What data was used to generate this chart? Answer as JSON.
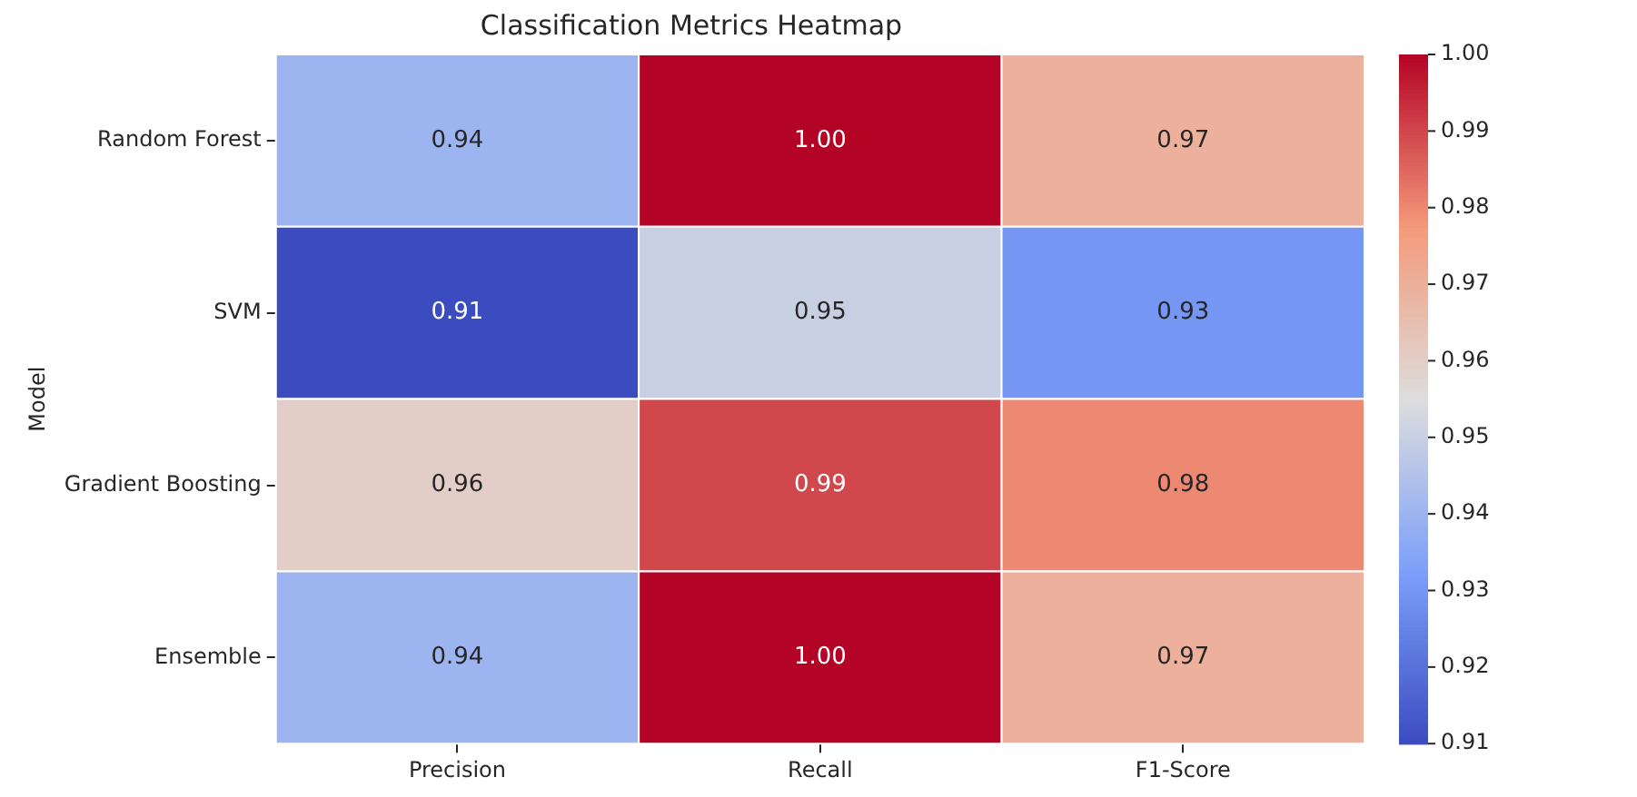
{
  "chart_data": {
    "type": "heatmap",
    "title": "Classification Metrics Heatmap",
    "ylabel": "Model",
    "categories": [
      "Precision",
      "Recall",
      "F1-Score"
    ],
    "y_categories": [
      "Random Forest",
      "SVM",
      "Gradient Boosting",
      "Ensemble"
    ],
    "cells": [
      [
        0.94,
        1.0,
        0.97
      ],
      [
        0.91,
        0.95,
        0.93
      ],
      [
        0.96,
        0.99,
        0.98
      ],
      [
        0.94,
        1.0,
        0.97
      ]
    ],
    "cell_labels": [
      [
        "0.94",
        "1.00",
        "0.97"
      ],
      [
        "0.91",
        "0.95",
        "0.93"
      ],
      [
        "0.96",
        "0.99",
        "0.98"
      ],
      [
        "0.94",
        "1.00",
        "0.97"
      ]
    ],
    "clim": [
      0.91,
      1.0
    ],
    "cticks": [
      0.91,
      0.92,
      0.93,
      0.94,
      0.95,
      0.96,
      0.97,
      0.98,
      0.99,
      {
        "value": 1.0,
        "label": "1.00"
      }
    ]
  }
}
